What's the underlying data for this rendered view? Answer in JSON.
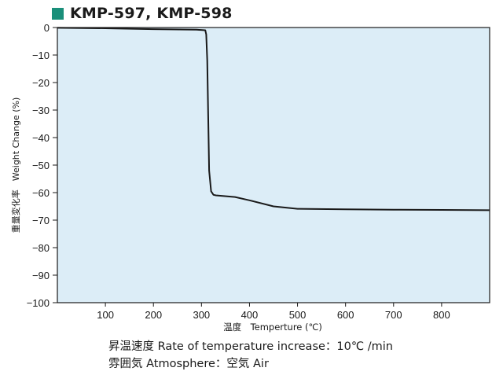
{
  "header": {
    "title": "KMP-597, KMP-598",
    "marker_color": "#1a8f7a"
  },
  "chart_data": {
    "type": "line",
    "title": "KMP-597, KMP-598",
    "xlabel": "温度　Temperture (℃)",
    "ylabel": "重量変化率　Weight Change (%)",
    "xlim": [
      0,
      900
    ],
    "ylim": [
      -100,
      0
    ],
    "xticks": [
      100,
      200,
      300,
      400,
      500,
      600,
      700,
      800
    ],
    "yticks": [
      0,
      -10,
      -20,
      -30,
      -40,
      -50,
      -60,
      -70,
      -80,
      -90,
      -100
    ],
    "xtick_labels": [
      "100",
      "200",
      "300",
      "400",
      "500",
      "600",
      "700",
      "800"
    ],
    "ytick_labels": [
      "0",
      "−10",
      "−20",
      "−30",
      "−40",
      "−50",
      "−60",
      "−70",
      "−80",
      "−90",
      "−100"
    ],
    "grid": false,
    "plot_background": "#dcedf7",
    "series": [
      {
        "color": "#1a1a1a",
        "x": [
          0,
          100,
          200,
          290,
          308,
          310,
          312,
          314,
          316,
          320,
          325,
          330,
          370,
          400,
          450,
          500,
          600,
          700,
          800,
          900
        ],
        "y": [
          -0.1,
          -0.3,
          -0.6,
          -0.8,
          -1.0,
          -2.5,
          -12,
          -32,
          -52,
          -59.5,
          -60.8,
          -61.0,
          -61.6,
          -62.8,
          -65.0,
          -65.9,
          -66.1,
          -66.2,
          -66.3,
          -66.4
        ]
      }
    ]
  },
  "notes": {
    "rate": "昇温速度 Rate of temperature increase：10℃ /min",
    "atmosphere": "雰囲気 Atmosphere：空気 Air"
  }
}
